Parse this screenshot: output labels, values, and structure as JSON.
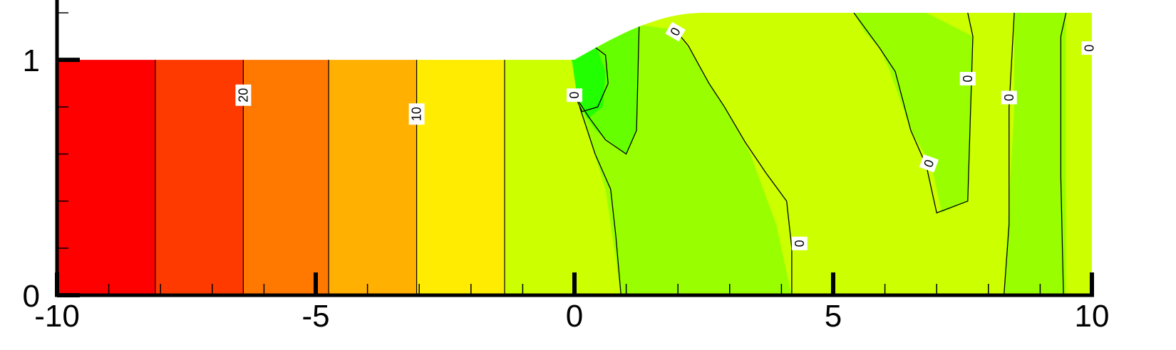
{
  "chart_data": {
    "type": "contour",
    "title": "",
    "xlabel": "",
    "ylabel": "",
    "xlim": [
      -10,
      10
    ],
    "ylim": [
      0,
      1.2
    ],
    "x_ticks": [
      {
        "value": -10,
        "label": "-10"
      },
      {
        "value": -5,
        "label": "-5"
      },
      {
        "value": 0,
        "label": "0"
      },
      {
        "value": 5,
        "label": "5"
      },
      {
        "value": 10,
        "label": "10"
      }
    ],
    "y_ticks": [
      {
        "value": 0,
        "label": "0"
      },
      {
        "value": 1,
        "label": "1"
      }
    ],
    "x_minor_step": 1,
    "y_minor_step": 0.2,
    "domain_boundary": {
      "inlet_height": 1.0,
      "outlet_height": 1.2,
      "step_start_x": 0,
      "step_end_x": 2.5
    },
    "bands": [
      {
        "x_from": -10,
        "x_to": -8.1,
        "color": "#ff0000"
      },
      {
        "x_from": -8.1,
        "x_to": -6.4,
        "color": "#ff3a00"
      },
      {
        "x_from": -6.4,
        "x_to": -4.75,
        "color": "#ff7800"
      },
      {
        "x_from": -4.75,
        "x_to": -3.05,
        "color": "#ffb000"
      },
      {
        "x_from": -3.05,
        "x_to": -1.35,
        "color": "#ffec00"
      },
      {
        "x_from": -1.35,
        "x_to": 10,
        "color": "#ccff00"
      }
    ],
    "vertical_isolines_x": [
      -8.1,
      -6.4,
      -4.75,
      -3.05,
      -1.35
    ],
    "regions": [
      {
        "name": "green-zone-1",
        "color": "#99ff00",
        "points": [
          [
            -0.05,
            1.0
          ],
          [
            0.5,
            1.05
          ],
          [
            1.2,
            1.15
          ],
          [
            1.9,
            1.13
          ],
          [
            2.2,
            1.05
          ],
          [
            2.9,
            0.8
          ],
          [
            3.4,
            0.6
          ],
          [
            3.9,
            0.3
          ],
          [
            4.2,
            0.0
          ],
          [
            0.9,
            0.0
          ],
          [
            0.6,
            0.45
          ],
          [
            0.1,
            0.8
          ]
        ]
      },
      {
        "name": "green-zone-2",
        "color": "#99ff00",
        "points": [
          [
            5.4,
            1.2
          ],
          [
            6.8,
            1.2
          ],
          [
            7.7,
            1.1
          ],
          [
            7.6,
            0.4
          ],
          [
            7.1,
            0.35
          ],
          [
            6.9,
            0.55
          ],
          [
            6.5,
            0.7
          ],
          [
            6.1,
            0.95
          ],
          [
            5.9,
            1.05
          ],
          [
            5.6,
            1.12
          ]
        ]
      },
      {
        "name": "green-zone-3",
        "color": "#99ff00",
        "points": [
          [
            8.5,
            1.2
          ],
          [
            9.5,
            1.2
          ],
          [
            9.5,
            0.0
          ],
          [
            8.3,
            0.0
          ],
          [
            8.5,
            0.8
          ]
        ]
      },
      {
        "name": "green-zone-inner",
        "color": "#66ff00",
        "points": [
          [
            -0.05,
            1.0
          ],
          [
            0.45,
            1.1
          ],
          [
            1.25,
            1.15
          ],
          [
            1.2,
            0.7
          ],
          [
            1.0,
            0.6
          ],
          [
            0.7,
            0.65
          ],
          [
            0.4,
            0.7
          ],
          [
            0.1,
            0.8
          ]
        ]
      },
      {
        "name": "green-zone-core",
        "color": "#22ff00",
        "points": [
          [
            -0.05,
            1.0
          ],
          [
            0.4,
            1.07
          ],
          [
            0.6,
            0.95
          ],
          [
            0.55,
            0.8
          ],
          [
            0.25,
            0.75
          ],
          [
            0.05,
            0.85
          ]
        ]
      }
    ],
    "isolines": [
      {
        "level_label": "0",
        "points": [
          [
            -0.05,
            1.0
          ],
          [
            0.3,
            1.07
          ],
          [
            0.6,
            1.02
          ],
          [
            0.65,
            0.9
          ],
          [
            0.45,
            0.8
          ],
          [
            0.15,
            0.78
          ],
          [
            0.0,
            0.85
          ]
        ]
      },
      {
        "level_label": "0",
        "points": [
          [
            0.0,
            0.85
          ],
          [
            0.3,
            0.75
          ],
          [
            0.6,
            0.66
          ],
          [
            1.0,
            0.6
          ],
          [
            1.2,
            0.7
          ],
          [
            1.25,
            1.15
          ]
        ]
      },
      {
        "level_label": "0",
        "points": [
          [
            0.1,
            0.8
          ],
          [
            0.4,
            0.6
          ],
          [
            0.7,
            0.45
          ],
          [
            0.8,
            0.25
          ],
          [
            0.9,
            0.0
          ]
        ]
      },
      {
        "level_label": "0",
        "points": [
          [
            1.9,
            1.14
          ],
          [
            2.2,
            1.06
          ],
          [
            2.6,
            0.9
          ],
          [
            2.9,
            0.8
          ],
          [
            3.3,
            0.65
          ],
          [
            3.7,
            0.52
          ],
          [
            4.1,
            0.4
          ],
          [
            4.2,
            0.2
          ],
          [
            4.2,
            0.0
          ]
        ]
      },
      {
        "level_label": "0",
        "points": [
          [
            5.4,
            1.2
          ],
          [
            5.9,
            1.05
          ],
          [
            6.2,
            0.95
          ],
          [
            6.5,
            0.7
          ],
          [
            6.8,
            0.55
          ],
          [
            7.0,
            0.35
          ],
          [
            7.6,
            0.4
          ],
          [
            7.7,
            1.1
          ],
          [
            7.6,
            1.2
          ]
        ]
      },
      {
        "level_label": "0",
        "points": [
          [
            8.5,
            1.2
          ],
          [
            8.4,
            0.8
          ],
          [
            8.4,
            0.3
          ],
          [
            8.3,
            0.0
          ]
        ]
      },
      {
        "level_label": "0",
        "points": [
          [
            9.5,
            1.2
          ],
          [
            9.4,
            1.1
          ],
          [
            9.4,
            0.5
          ],
          [
            9.45,
            0.0
          ]
        ]
      }
    ],
    "contour_labels": [
      {
        "text": "20",
        "x": -6.4,
        "y": 0.85,
        "rotation": -90
      },
      {
        "text": "10",
        "x": -3.05,
        "y": 0.77,
        "rotation": -90
      },
      {
        "text": "0",
        "x": 0.0,
        "y": 0.85,
        "rotation": -90
      },
      {
        "text": "0",
        "x": 1.95,
        "y": 1.12,
        "rotation": -60
      },
      {
        "text": "0",
        "x": 4.35,
        "y": 0.22,
        "rotation": -90
      },
      {
        "text": "0",
        "x": 6.85,
        "y": 0.56,
        "rotation": -70
      },
      {
        "text": "0",
        "x": 7.6,
        "y": 0.92,
        "rotation": -90
      },
      {
        "text": "0",
        "x": 8.4,
        "y": 0.84,
        "rotation": -90
      },
      {
        "text": "0",
        "x": 9.95,
        "y": 1.05,
        "rotation": -90
      }
    ]
  }
}
